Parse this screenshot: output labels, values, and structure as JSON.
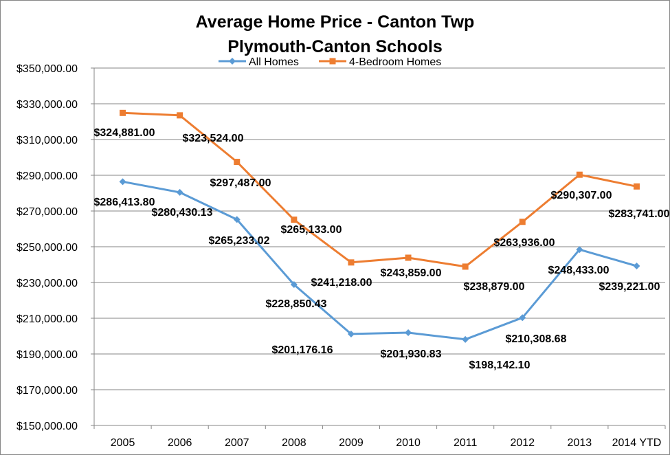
{
  "chart_data": {
    "type": "line",
    "title": [
      "Average Home Price - Canton Twp",
      "Plymouth-Canton Schools"
    ],
    "xlabel": "",
    "ylabel": "",
    "categories": [
      "2005",
      "2006",
      "2007",
      "2008",
      "2009",
      "2010",
      "2011",
      "2012",
      "2013",
      "2014 YTD"
    ],
    "ylim": [
      150000,
      350000
    ],
    "ytick_step": 20000,
    "y_tick_labels": [
      "$150,000.00",
      "$170,000.00",
      "$190,000.00",
      "$210,000.00",
      "$230,000.00",
      "$250,000.00",
      "$270,000.00",
      "$290,000.00",
      "$310,000.00",
      "$330,000.00",
      "$350,000.00"
    ],
    "grid": "horizontal",
    "legend": "top-center",
    "series": [
      {
        "name": "All Homes",
        "color": "#5B9BD5",
        "marker": "diamond",
        "values": [
          286413.8,
          280430.13,
          265233.02,
          228850.43,
          201176.16,
          201930.83,
          198142.1,
          210308.68,
          248433.0,
          239221.0
        ],
        "labels": [
          "$286,413.80",
          "$280,430.13",
          "$265,233.02",
          "$228,850.43",
          "$201,176.16",
          "$201,930.83",
          "$198,142.10",
          "$210,308.68",
          "$248,433.00",
          "$239,221.00"
        ]
      },
      {
        "name": "4-Bedroom Homes",
        "color": "#ED7D31",
        "marker": "square",
        "values": [
          324881.0,
          323524.0,
          297487.0,
          265133.0,
          241218.0,
          243859.0,
          238879.0,
          263936.0,
          290307.0,
          283741.0
        ],
        "labels": [
          "$324,881.00",
          "$323,524.00",
          "$297,487.00",
          "$265,133.00",
          "$241,218.00",
          "$243,859.00",
          "$238,879.00",
          "$263,936.00",
          "$290,307.00",
          "$283,741.00"
        ]
      }
    ]
  }
}
